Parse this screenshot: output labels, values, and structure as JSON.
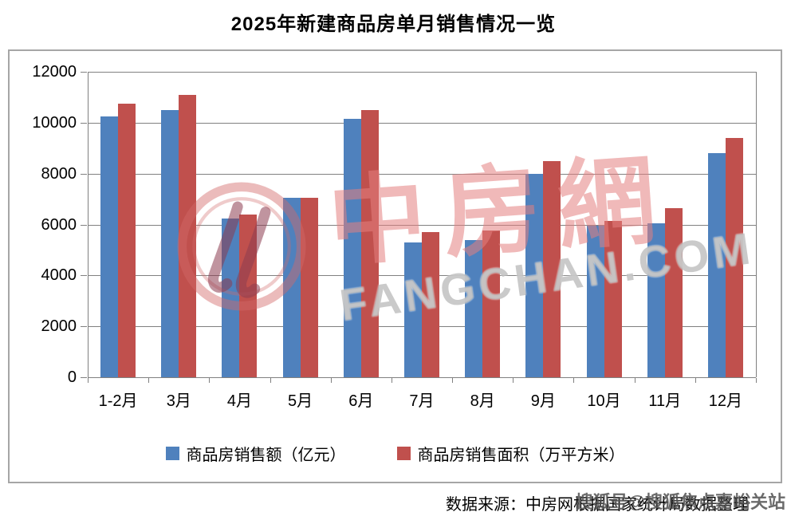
{
  "title": "2025年新建商品房单月销售情况一览",
  "source_note": "数据来源：中房网根据国家统计局数据整理",
  "watermark": {
    "logo_chars": "中房網",
    "domain_text": "FANGCHAN.COM",
    "sohu_badge": "搜狐号@搜狐焦点嘉峪关站"
  },
  "colors": {
    "sales_amount": "#4F81BD",
    "sales_area": "#C0504D",
    "gridline": "#808080",
    "frame": "#A6A6A6"
  },
  "chart_data": {
    "type": "bar",
    "title": "2025年新建商品房单月销售情况一览",
    "categories": [
      "1-2月",
      "3月",
      "4月",
      "5月",
      "6月",
      "7月",
      "8月",
      "9月",
      "10月",
      "11月",
      "12月"
    ],
    "series": [
      {
        "name": "商品房销售额（亿元）",
        "color_key": "sales_amount",
        "values": [
          10250,
          10500,
          6250,
          7050,
          10150,
          5300,
          5400,
          8000,
          5950,
          6050,
          8800
        ]
      },
      {
        "name": "商品房销售面积（万平方米）",
        "color_key": "sales_area",
        "values": [
          10750,
          11100,
          6400,
          7050,
          10500,
          5700,
          5750,
          8500,
          6150,
          6650,
          9400
        ]
      }
    ],
    "xlabel": "",
    "ylabel": "",
    "ylim": [
      0,
      12000
    ],
    "ytick_step": 2000,
    "grid": true,
    "legend_position": "bottom"
  }
}
